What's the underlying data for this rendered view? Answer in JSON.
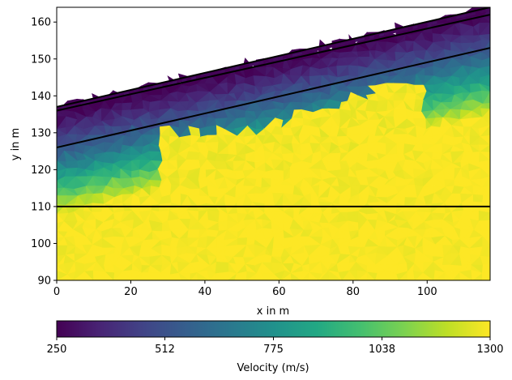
{
  "chart_data": {
    "type": "heatmap",
    "title": "",
    "xlabel": "x in m",
    "ylabel": "y in m",
    "xlim": [
      0,
      117
    ],
    "ylim": [
      90,
      164
    ],
    "xticks": [
      0,
      20,
      40,
      60,
      80,
      100
    ],
    "yticks": [
      90,
      100,
      110,
      120,
      130,
      140,
      150,
      160
    ],
    "grid": false,
    "surface": {
      "x": [
        0,
        117
      ],
      "y": [
        137,
        164
      ]
    },
    "boundaries": [
      {
        "name": "",
        "x": [
          0,
          117
        ],
        "y": [
          136,
          162
        ]
      },
      {
        "name": "",
        "x": [
          0,
          117
        ],
        "y": [
          126,
          153
        ]
      },
      {
        "name": "",
        "x": [
          0,
          117
        ],
        "y": [
          110,
          110
        ]
      }
    ],
    "top_of_fast_layer": {
      "x": [
        30,
        34,
        38,
        41,
        45,
        48,
        52,
        55,
        58,
        62,
        65,
        69,
        72,
        75,
        79,
        83,
        86,
        89,
        92,
        96,
        99,
        100
      ],
      "y": [
        132,
        129,
        131,
        129,
        132,
        129,
        131,
        130,
        134,
        133,
        136,
        135,
        137,
        136,
        141,
        139,
        143,
        142,
        144,
        143,
        144,
        122
      ]
    },
    "colorbar": {
      "label": "Velocity (m/s)",
      "min": 250,
      "max": 1300,
      "ticks": [
        "250",
        "512",
        "775",
        "1038",
        "1300"
      ],
      "colormap": "viridis"
    },
    "palette": [
      "#440154",
      "#482475",
      "#414487",
      "#355f8d",
      "#2a788e",
      "#21918c",
      "#22a884",
      "#44bf70",
      "#7ad151",
      "#bddf26",
      "#fde725"
    ]
  }
}
